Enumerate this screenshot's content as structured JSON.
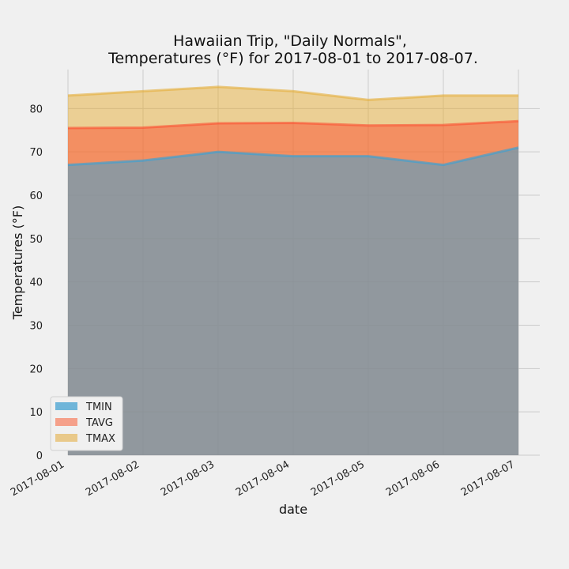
{
  "chart_data": {
    "type": "area",
    "title_line1": "Hawaiian Trip, \"Daily Normals\",",
    "title_line2": "Temperatures (°F) for 2017-08-01 to 2017-08-07.",
    "xlabel": "date",
    "ylabel": "Temperatures (°F)",
    "categories": [
      "2017-08-01",
      "2017-08-02",
      "2017-08-03",
      "2017-08-04",
      "2017-08-05",
      "2017-08-06",
      "2017-08-07"
    ],
    "ylim": [
      0,
      89
    ],
    "yticks": [
      0,
      10,
      20,
      30,
      40,
      50,
      60,
      70,
      80
    ],
    "grid": true,
    "legend_position": "lower-left",
    "series": [
      {
        "name": "TMIN",
        "values": [
          67,
          68,
          70,
          69,
          69,
          67,
          71
        ],
        "color": "#30a2da",
        "fill": "#6fb5d9"
      },
      {
        "name": "TAVG",
        "values": [
          75.5,
          75.6,
          76.6,
          76.7,
          76.1,
          76.2,
          77.1
        ],
        "color": "#fc4f30",
        "fill": "#f5a08a"
      },
      {
        "name": "TMAX",
        "values": [
          83,
          84,
          85,
          84,
          82,
          83,
          83
        ],
        "color": "#e5ae38",
        "fill": "#e9c98a"
      }
    ]
  }
}
